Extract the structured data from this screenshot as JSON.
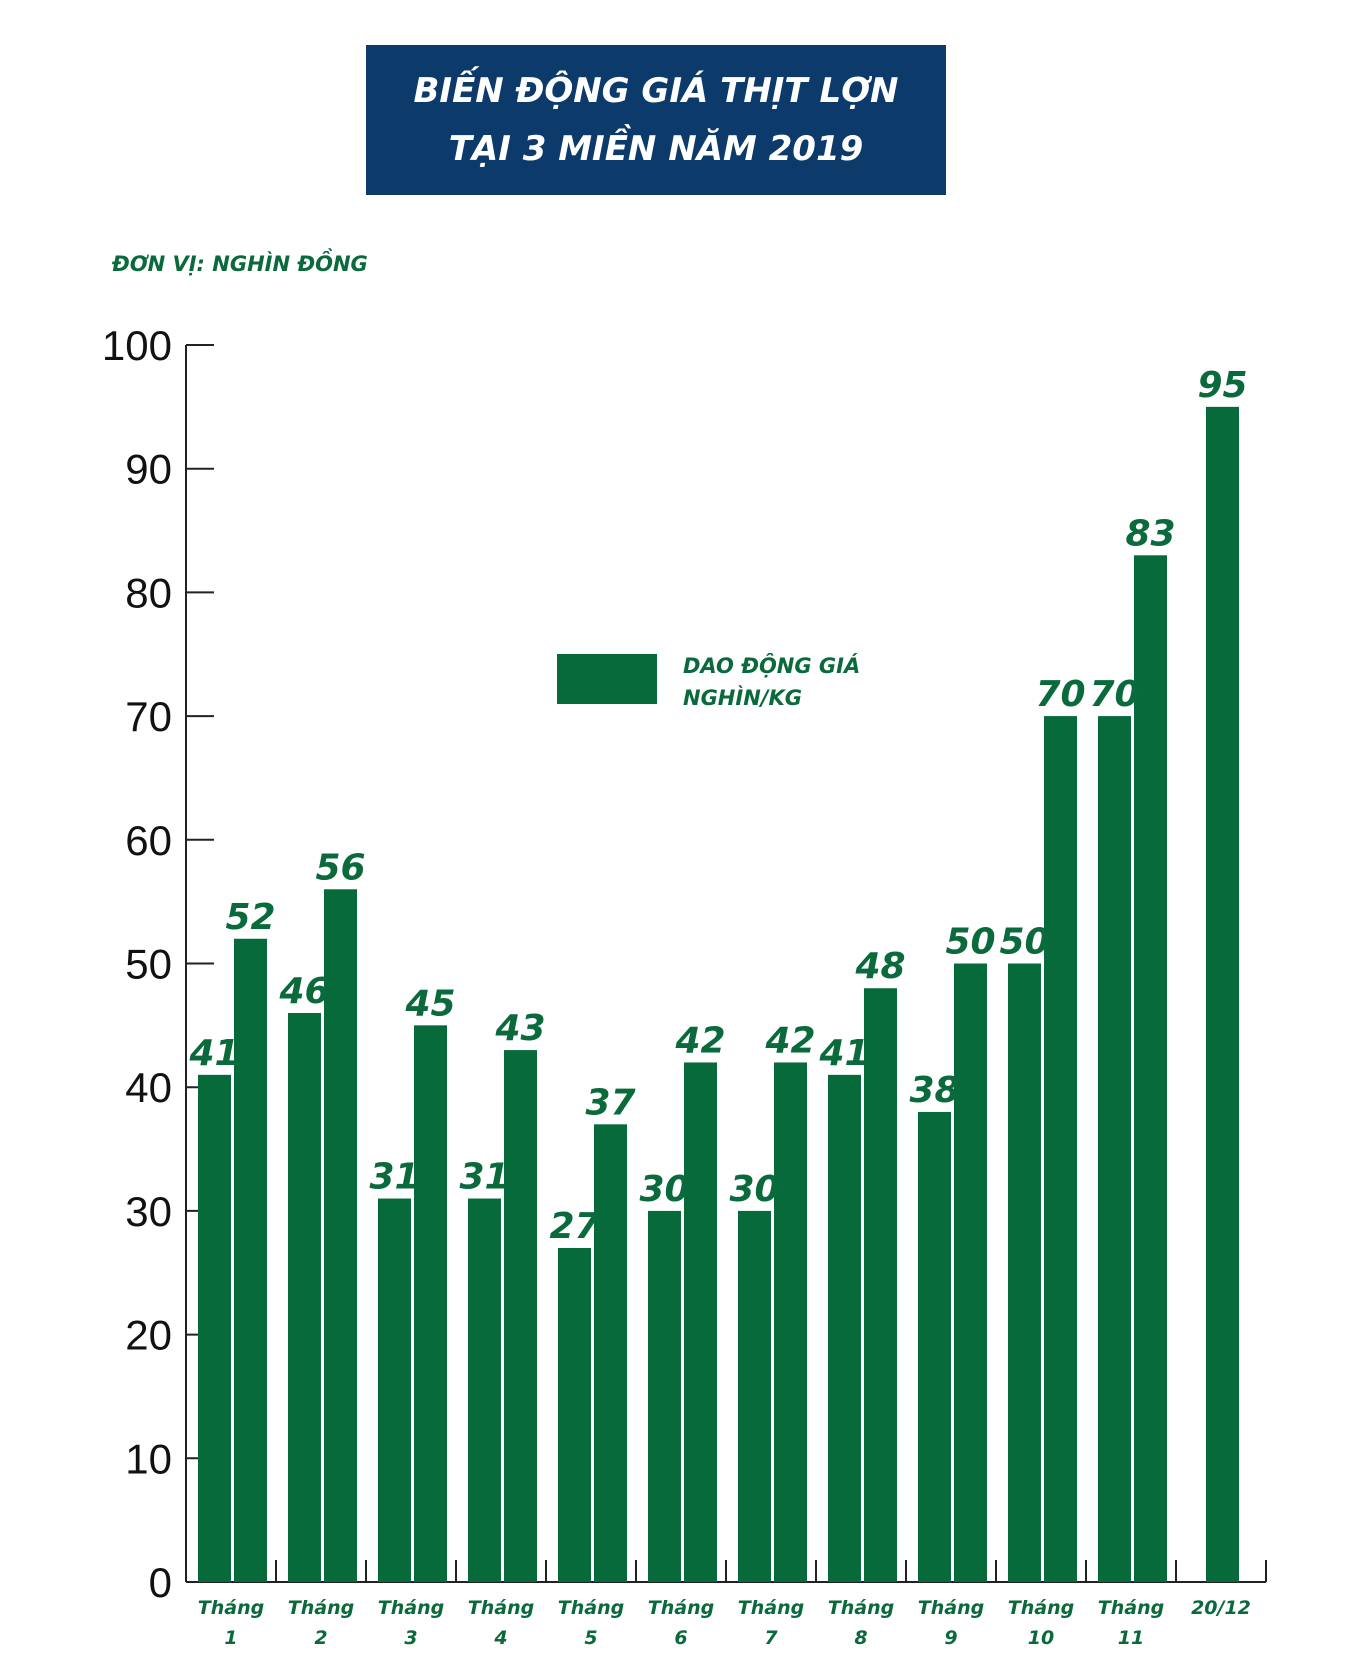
{
  "header": {
    "title_line1": "BIẾN ĐỘNG GIÁ THỊT LỢN",
    "title_line2": "TẠI 3 MIỀN NĂM 2019",
    "unit_label": "ĐƠN VỊ: NGHÌN ĐỒNG"
  },
  "legend": {
    "line1": "DAO ĐỘNG GIÁ",
    "line2": "NGHÌN/KG"
  },
  "colors": {
    "bar": "#066a3b",
    "label": "#0a6a3c",
    "title_bg": "#0b3a6b"
  },
  "chart_data": {
    "type": "bar",
    "title": "BIẾN ĐỘNG GIÁ THỊT LỢN TẠI 3 MIỀN NĂM 2019",
    "ylabel": "ĐƠN VỊ: NGHÌN ĐỒNG",
    "ylim": [
      0,
      100
    ],
    "yticks": [
      0,
      10,
      20,
      30,
      40,
      50,
      60,
      70,
      80,
      90,
      100
    ],
    "grid": false,
    "legend_position": "center",
    "categories": [
      {
        "line1": "Tháng",
        "line2": "1"
      },
      {
        "line1": "Tháng",
        "line2": "2"
      },
      {
        "line1": "Tháng",
        "line2": "3"
      },
      {
        "line1": "Tháng",
        "line2": "4"
      },
      {
        "line1": "Tháng",
        "line2": "5"
      },
      {
        "line1": "Tháng",
        "line2": "6"
      },
      {
        "line1": "Tháng",
        "line2": "7"
      },
      {
        "line1": "Tháng",
        "line2": "8"
      },
      {
        "line1": "Tháng",
        "line2": "9"
      },
      {
        "line1": "Tháng",
        "line2": "10"
      },
      {
        "line1": "Tháng",
        "line2": "11"
      },
      {
        "line1": "20/12",
        "line2": ""
      }
    ],
    "series": [
      {
        "name": "DAO ĐỘNG GIÁ NGHÌN/KG",
        "ranges": [
          [
            41,
            52
          ],
          [
            46,
            56
          ],
          [
            31,
            45
          ],
          [
            31,
            43
          ],
          [
            27,
            37
          ],
          [
            30,
            42
          ],
          [
            30,
            42
          ],
          [
            41,
            48
          ],
          [
            38,
            50
          ],
          [
            50,
            70
          ],
          [
            70,
            83
          ],
          [
            95
          ]
        ]
      }
    ]
  }
}
